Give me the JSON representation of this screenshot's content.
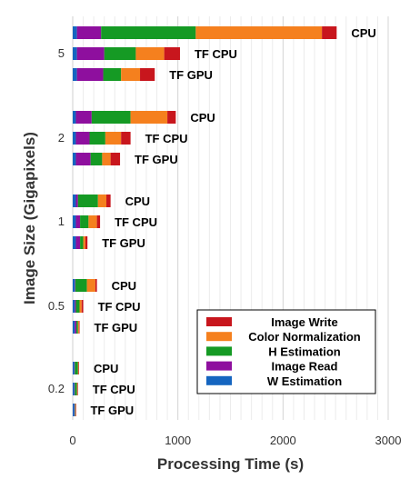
{
  "chart_data": {
    "type": "bar",
    "orientation": "horizontal",
    "stacked": true,
    "title": "",
    "xlabel": "Processing Time (s)",
    "ylabel": "Image Size (Gigapixels)",
    "xlim": [
      0,
      3000
    ],
    "xticks": [
      "0",
      "1000",
      "2000",
      "3000"
    ],
    "grid": "vertical",
    "legend_position": "bottom-right",
    "groups": [
      {
        "name": "5",
        "bars": [
          {
            "label": "CPU",
            "values": [
              40,
              230,
              900,
              1200,
              140
            ]
          },
          {
            "label": "TF CPU",
            "values": [
              40,
              260,
              300,
              270,
              150
            ]
          },
          {
            "label": "TF GPU",
            "values": [
              40,
              250,
              170,
              180,
              140
            ]
          }
        ]
      },
      {
        "name": "2",
        "bars": [
          {
            "label": "CPU",
            "values": [
              30,
              150,
              370,
              350,
              80
            ]
          },
          {
            "label": "TF CPU",
            "values": [
              30,
              130,
              150,
              150,
              90
            ]
          },
          {
            "label": "TF GPU",
            "values": [
              30,
              140,
              110,
              80,
              90
            ]
          }
        ]
      },
      {
        "name": "1",
        "bars": [
          {
            "label": "CPU",
            "values": [
              30,
              20,
              190,
              80,
              40
            ]
          },
          {
            "label": "TF CPU",
            "values": [
              30,
              40,
              80,
              80,
              30
            ]
          },
          {
            "label": "TF GPU",
            "values": [
              30,
              40,
              30,
              20,
              20
            ]
          }
        ]
      },
      {
        "name": "0.5",
        "bars": [
          {
            "label": "CPU",
            "values": [
              20,
              5,
              110,
              80,
              15
            ]
          },
          {
            "label": "TF CPU",
            "values": [
              20,
              10,
              35,
              20,
              15
            ]
          },
          {
            "label": "TF GPU",
            "values": [
              20,
              15,
              15,
              10,
              5
            ]
          }
        ]
      },
      {
        "name": "0.2",
        "bars": [
          {
            "label": "CPU",
            "values": [
              15,
              5,
              30,
              5,
              5
            ]
          },
          {
            "label": "TF CPU",
            "values": [
              15,
              5,
              20,
              5,
              5
            ]
          },
          {
            "label": "TF GPU",
            "values": [
              15,
              5,
              5,
              3,
              2
            ]
          }
        ]
      }
    ],
    "series": [
      {
        "name": "W Estimation",
        "color": "#1565c0"
      },
      {
        "name": "Image Read",
        "color": "#8e0f9e"
      },
      {
        "name": "H Estimation",
        "color": "#159a24"
      },
      {
        "name": "Color Normalization",
        "color": "#f5801e"
      },
      {
        "name": "Image Write",
        "color": "#c8161d"
      }
    ],
    "legend_order": [
      "Image Write",
      "Color Normalization",
      "H Estimation",
      "Image Read",
      "W Estimation"
    ]
  }
}
